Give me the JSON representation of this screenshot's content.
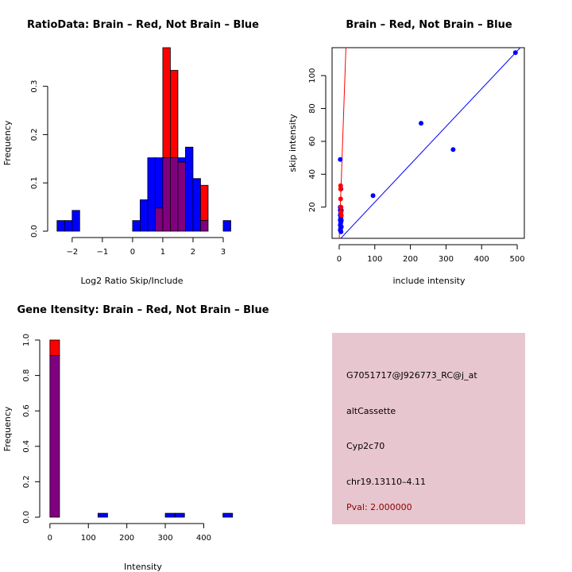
{
  "chart_data": [
    {
      "type": "histogram",
      "title": "RatioData: Brain – Red, Not Brain – Blue",
      "xlabel": "Log2 Ratio Skip/Include",
      "ylabel": "Frequency",
      "xlim": [
        -2.6,
        3.5
      ],
      "ylim": [
        0,
        0.38
      ],
      "xticks": [
        "−2",
        "−1",
        "0",
        "1",
        "2",
        "3"
      ],
      "yticks": [
        "0.0",
        "0.1",
        "0.2",
        "0.3"
      ],
      "bin_width": 0.25,
      "series": [
        {
          "name": "Brain",
          "color": "#ff0000",
          "bins": [
            {
              "x0": 0.75,
              "v": 0.048
            },
            {
              "x0": 1.0,
              "v": 0.38
            },
            {
              "x0": 1.25,
              "v": 0.333
            },
            {
              "x0": 1.5,
              "v": 0.143
            },
            {
              "x0": 1.75,
              "v": 0.0
            },
            {
              "x0": 2.0,
              "v": 0.0
            },
            {
              "x0": 2.25,
              "v": 0.095
            }
          ]
        },
        {
          "name": "Not Brain",
          "color": "#0000ff",
          "bins": [
            {
              "x0": -2.5,
              "v": 0.022
            },
            {
              "x0": -2.25,
              "v": 0.022
            },
            {
              "x0": -2.0,
              "v": 0.043
            },
            {
              "x0": 0.0,
              "v": 0.022
            },
            {
              "x0": 0.25,
              "v": 0.065
            },
            {
              "x0": 0.5,
              "v": 0.152
            },
            {
              "x0": 0.75,
              "v": 0.152
            },
            {
              "x0": 1.0,
              "v": 0.152
            },
            {
              "x0": 1.25,
              "v": 0.152
            },
            {
              "x0": 1.5,
              "v": 0.152
            },
            {
              "x0": 1.75,
              "v": 0.174
            },
            {
              "x0": 2.0,
              "v": 0.109
            },
            {
              "x0": 2.25,
              "v": 0.022
            },
            {
              "x0": 3.0,
              "v": 0.022
            }
          ]
        }
      ],
      "overlap_color": "#800080"
    },
    {
      "type": "scatter",
      "title": "Brain – Red, Not Brain – Blue",
      "xlabel": "include intensity",
      "ylabel": "skip intensity",
      "xlim": [
        -20,
        520
      ],
      "ylim": [
        1,
        117
      ],
      "xticks": [
        0,
        100,
        200,
        300,
        400,
        500
      ],
      "yticks": [
        20,
        40,
        60,
        80,
        100
      ],
      "series": [
        {
          "name": "Brain",
          "color": "#ff0000",
          "points": [
            [
              4,
              33
            ],
            [
              4,
              31
            ],
            [
              4,
              25
            ],
            [
              5,
              20
            ],
            [
              5,
              17
            ],
            [
              6,
              15
            ]
          ]
        },
        {
          "name": "Not Brain",
          "color": "#0000ff",
          "points": [
            [
              3,
              49
            ],
            [
              5,
              31
            ],
            [
              95,
              27
            ],
            [
              230,
              71
            ],
            [
              320,
              55
            ],
            [
              495,
              114
            ],
            [
              3,
              20
            ],
            [
              4,
              19
            ],
            [
              3,
              18
            ],
            [
              5,
              17
            ],
            [
              4,
              16
            ],
            [
              3,
              15
            ],
            [
              5,
              14
            ],
            [
              4,
              13
            ],
            [
              3,
              12
            ],
            [
              5,
              11
            ],
            [
              4,
              10
            ],
            [
              3,
              9
            ],
            [
              5,
              8
            ],
            [
              4,
              7
            ],
            [
              3,
              6
            ],
            [
              5,
              5
            ],
            [
              6,
              18
            ],
            [
              6,
              12
            ],
            [
              6,
              8
            ]
          ]
        }
      ],
      "lines": [
        {
          "name": "red-line",
          "color": "#ff0000",
          "slope": 6.2,
          "intercept": 0
        },
        {
          "name": "blue-line",
          "color": "#0000ff",
          "slope": 0.23,
          "intercept": 0
        }
      ]
    },
    {
      "type": "histogram",
      "title": "Gene Itensity: Brain – Red, Not Brain – Blue",
      "xlabel": "Intensity",
      "ylabel": "Frequency",
      "xlim": [
        -10,
        490
      ],
      "ylim": [
        0,
        1.0
      ],
      "xticks": [
        0,
        100,
        200,
        300,
        400
      ],
      "yticks": [
        "0.0",
        "0.2",
        "0.4",
        "0.6",
        "0.8",
        "1.0"
      ],
      "bin_width": 25,
      "series": [
        {
          "name": "Brain",
          "color": "#ff0000",
          "bins": [
            {
              "x0": 0,
              "v": 1.0
            }
          ]
        },
        {
          "name": "Not Brain",
          "color": "#0000ff",
          "bins": [
            {
              "x0": 0,
              "v": 0.913
            },
            {
              "x0": 125,
              "v": 0.022
            },
            {
              "x0": 300,
              "v": 0.022
            },
            {
              "x0": 325,
              "v": 0.022
            },
            {
              "x0": 450,
              "v": 0.022
            }
          ]
        }
      ],
      "overlap_color": "#800080"
    }
  ],
  "info_panel": {
    "background": "#e8c6cf",
    "probe": "G7051717@J926773_RC@j_at",
    "event": "altCassette",
    "gene": "Cyp2c70",
    "location": "chr19.13110–4.11",
    "pval": "Pval: 2.000000",
    "pval_color": "#8b0000"
  }
}
